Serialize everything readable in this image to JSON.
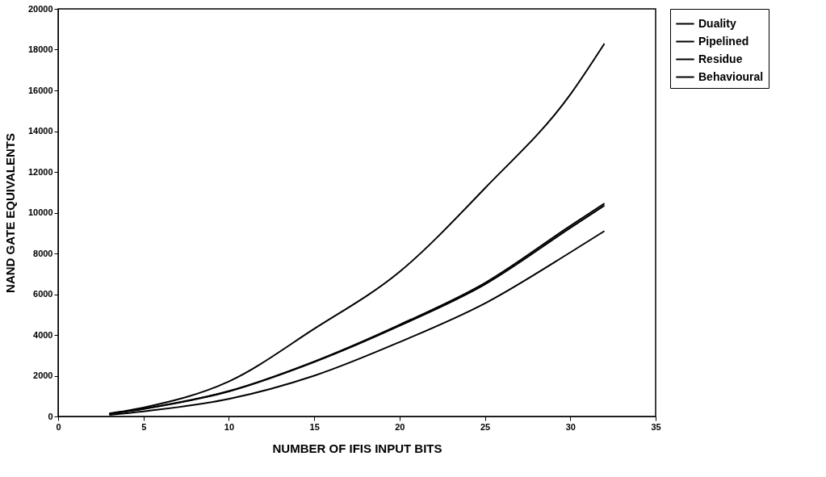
{
  "chart_data": {
    "type": "line",
    "xlabel": "NUMBER OF IFIS INPUT BITS",
    "ylabel": "NAND GATE EQUIVALENTS",
    "x": [
      3,
      5,
      10,
      15,
      20,
      25,
      30,
      32
    ],
    "series": [
      {
        "name": "Duality",
        "color": "#000000",
        "values": [
          150,
          440,
          1720,
          4300,
          7100,
          11200,
          15800,
          18300
        ]
      },
      {
        "name": "Pipelined",
        "color": "#000000",
        "values": [
          130,
          380,
          1250,
          2700,
          4500,
          6550,
          9350,
          10450
        ]
      },
      {
        "name": "Residue",
        "color": "#000000",
        "values": [
          130,
          370,
          1230,
          2670,
          4450,
          6480,
          9250,
          10350
        ]
      },
      {
        "name": "Behavioural",
        "color": "#000000",
        "values": [
          80,
          250,
          860,
          2000,
          3650,
          5550,
          8050,
          9100
        ]
      }
    ],
    "xlim": [
      0,
      35
    ],
    "xticks": [
      0,
      5,
      10,
      15,
      20,
      25,
      30,
      35
    ],
    "ylim": [
      0,
      20000
    ],
    "yticks": [
      0,
      2000,
      4000,
      6000,
      8000,
      10000,
      12000,
      14000,
      16000,
      18000,
      20000
    ],
    "grid": false,
    "legend": "right",
    "marker": "none",
    "line_style": "solid"
  }
}
